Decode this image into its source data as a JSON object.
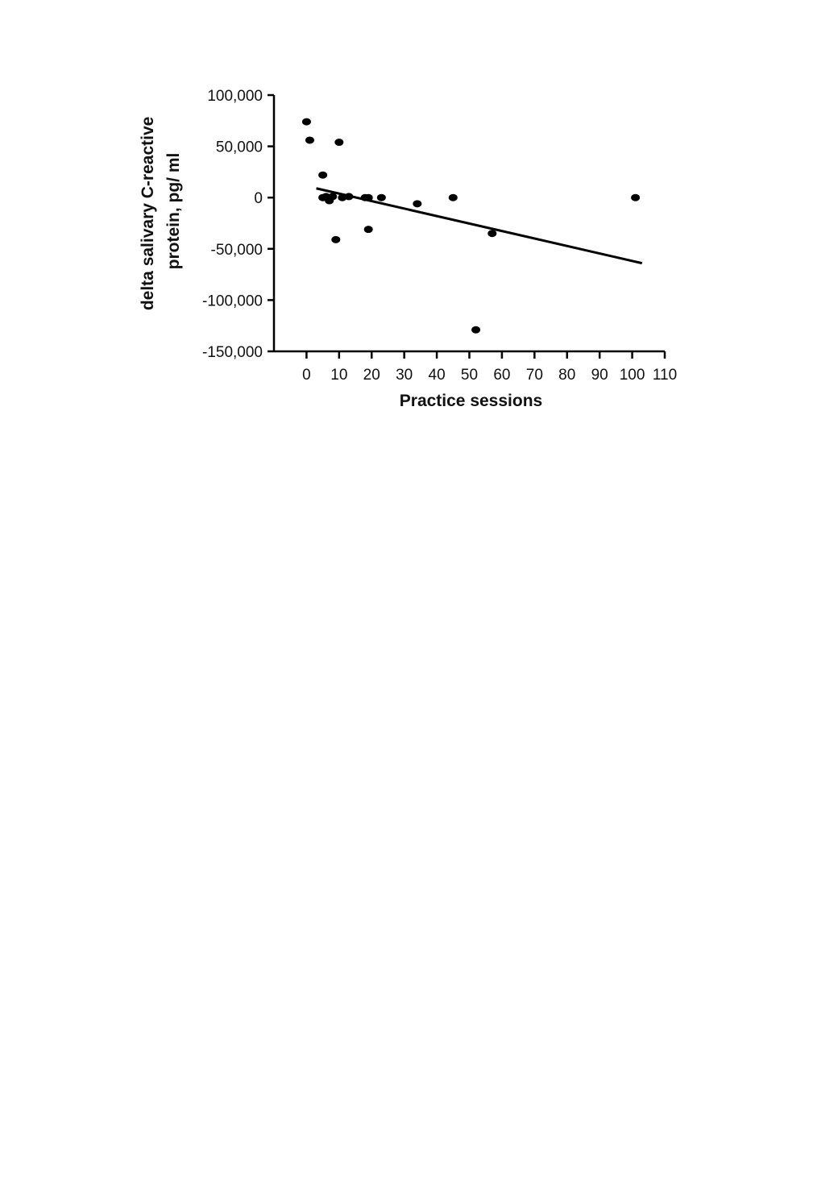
{
  "chart_data": {
    "type": "scatter",
    "xlabel": "Practice sessions",
    "ylabel_lines": [
      "delta salivary C-reactive",
      "protein, pg/ ml"
    ],
    "xlim": [
      -10,
      110
    ],
    "ylim": [
      -150000,
      100000
    ],
    "x_ticks": [
      0,
      10,
      20,
      30,
      40,
      50,
      60,
      70,
      80,
      90,
      100,
      110
    ],
    "x_tick_labels": [
      "0",
      "10",
      "20",
      "30",
      "40",
      "50",
      "60",
      "70",
      "80",
      "90",
      "100",
      "110"
    ],
    "y_ticks": [
      100000,
      50000,
      0,
      -50000,
      -100000,
      -150000
    ],
    "y_tick_labels": [
      "100,000",
      "50,000",
      "0",
      "-50,000",
      "-100,000",
      "-150,000"
    ],
    "grid": false,
    "legend": "none",
    "series": [
      {
        "points": [
          {
            "x": 0,
            "y": 74000
          },
          {
            "x": 1,
            "y": 56000
          },
          {
            "x": 5,
            "y": 22000
          },
          {
            "x": 5,
            "y": 0
          },
          {
            "x": 6,
            "y": 1000
          },
          {
            "x": 7,
            "y": -3000
          },
          {
            "x": 7,
            "y": 0
          },
          {
            "x": 8,
            "y": 1000
          },
          {
            "x": 9,
            "y": -41000
          },
          {
            "x": 10,
            "y": 54000
          },
          {
            "x": 11,
            "y": 0
          },
          {
            "x": 13,
            "y": 1000
          },
          {
            "x": 18,
            "y": 0
          },
          {
            "x": 19,
            "y": 0
          },
          {
            "x": 19,
            "y": -31000
          },
          {
            "x": 23,
            "y": 0
          },
          {
            "x": 34,
            "y": -6000
          },
          {
            "x": 45,
            "y": 0
          },
          {
            "x": 52,
            "y": -129000
          },
          {
            "x": 57,
            "y": -35000
          },
          {
            "x": 101,
            "y": 0
          }
        ]
      }
    ],
    "trend_line": {
      "x": [
        3,
        103
      ],
      "y": [
        9000,
        -64000
      ]
    },
    "colors": {
      "marker": "#000000",
      "line": "#000000",
      "text": "#111111"
    }
  }
}
